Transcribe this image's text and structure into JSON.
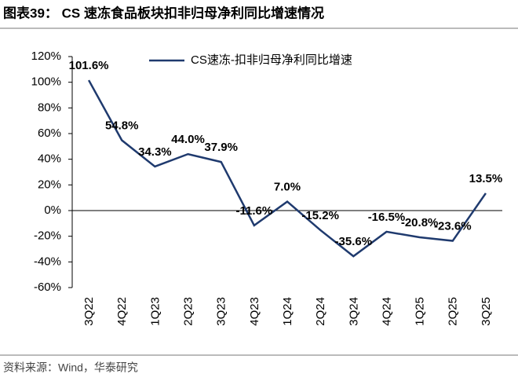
{
  "chart_data": {
    "type": "line",
    "title": "图表39： CS 速冻食品板块扣非归母净利同比增速情况",
    "source": "资料来源：Wind，华泰研究",
    "categories": [
      "3Q22",
      "4Q22",
      "1Q23",
      "2Q23",
      "3Q23",
      "4Q23",
      "1Q24",
      "2Q24",
      "3Q24",
      "4Q24",
      "1Q25",
      "2Q25",
      "3Q25"
    ],
    "series": [
      {
        "name": "CS速冻-扣非归母净利同比增速",
        "color": "#1f3a6e",
        "values": [
          101.6,
          54.8,
          34.3,
          44.0,
          37.9,
          -11.6,
          7.0,
          -15.2,
          -35.6,
          -16.5,
          -20.8,
          -23.6,
          13.5
        ],
        "value_labels": [
          "101.6%",
          "54.8%",
          "34.3%",
          "44.0%",
          "37.9%",
          "-11.6%",
          "7.0%",
          "-15.2%",
          "-35.6%",
          "-16.5%",
          "-20.8%",
          "-23.6%",
          "13.5%"
        ]
      }
    ],
    "ylim": [
      -60,
      120
    ],
    "yticks": [
      {
        "value": -60,
        "label": "-60%"
      },
      {
        "value": -40,
        "label": "-40%"
      },
      {
        "value": -20,
        "label": "-20%"
      },
      {
        "value": 0,
        "label": "0%"
      },
      {
        "value": 20,
        "label": "20%"
      },
      {
        "value": 40,
        "label": "40%"
      },
      {
        "value": 60,
        "label": "60%"
      },
      {
        "value": 80,
        "label": "80%"
      },
      {
        "value": 100,
        "label": "100%"
      },
      {
        "value": 120,
        "label": "120%"
      }
    ],
    "grid": false
  }
}
